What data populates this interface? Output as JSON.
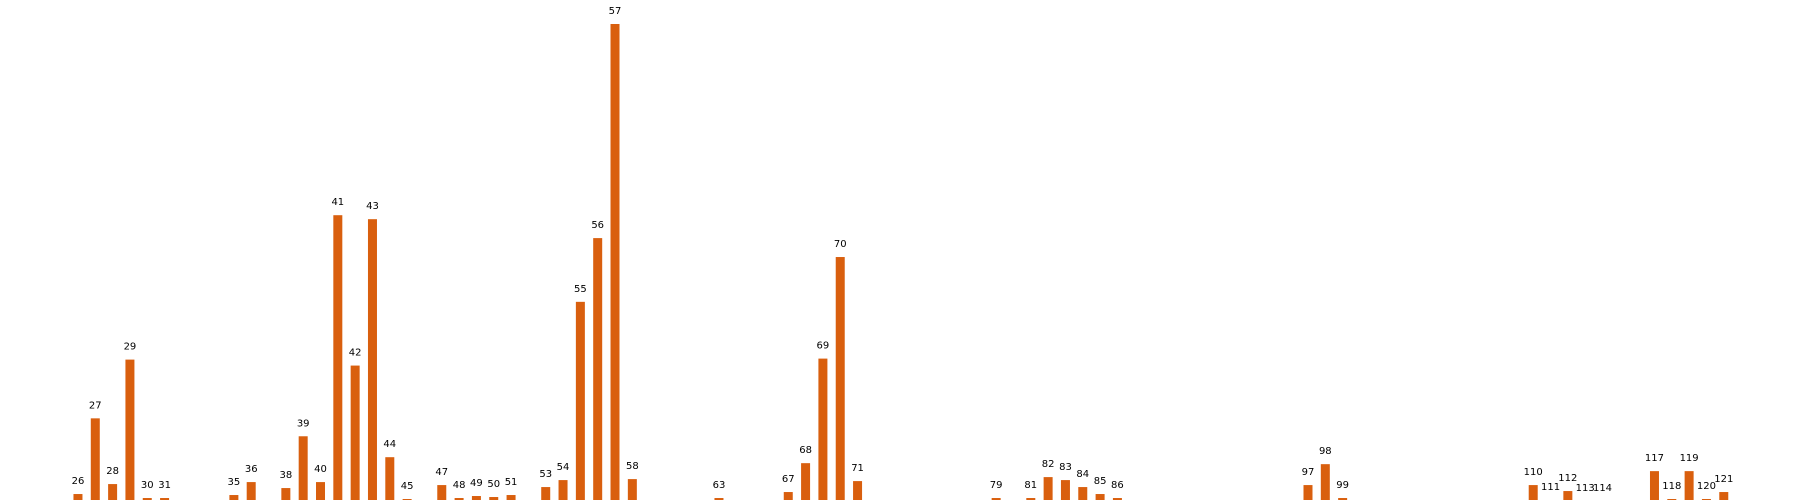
{
  "chart_data": {
    "type": "bar",
    "bar_color": "#d95f0e",
    "categories": [
      "26",
      "27",
      "28",
      "29",
      "30",
      "31",
      "35",
      "36",
      "38",
      "39",
      "40",
      "41",
      "42",
      "43",
      "44",
      "45",
      "47",
      "48",
      "49",
      "50",
      "51",
      "53",
      "54",
      "55",
      "56",
      "57",
      "58",
      "63",
      "67",
      "68",
      "69",
      "70",
      "71",
      "79",
      "81",
      "82",
      "83",
      "84",
      "85",
      "86",
      "97",
      "98",
      "99",
      "110",
      "111",
      "112",
      "113",
      "114",
      "117",
      "118",
      "119",
      "120",
      "121"
    ],
    "values": [
      8,
      84,
      18,
      143,
      4,
      4,
      7,
      20,
      14,
      66,
      20,
      288,
      137,
      284,
      45,
      3,
      17,
      4,
      6,
      5,
      7,
      15,
      22,
      201,
      265,
      480,
      23,
      4,
      10,
      39,
      144,
      246,
      21,
      4,
      4,
      25,
      22,
      15,
      8,
      4,
      17,
      38,
      4,
      17,
      2,
      11,
      1,
      1,
      31,
      3,
      31,
      3,
      10
    ],
    "x_positions": [
      26,
      27,
      28,
      29,
      30,
      31,
      35,
      36,
      38,
      39,
      40,
      41,
      42,
      43,
      44,
      45,
      47,
      48,
      49,
      50,
      51,
      53,
      54,
      55,
      56,
      57,
      58,
      63,
      67,
      68,
      69,
      70,
      71,
      79,
      81,
      82,
      83,
      84,
      85,
      86,
      97,
      98,
      99,
      110,
      111,
      112,
      113,
      114,
      117,
      118,
      119,
      120,
      121
    ],
    "xlim": [
      21.5,
      125.4
    ],
    "ylim": [
      0,
      480
    ],
    "title": "",
    "xlabel": "",
    "ylabel": "",
    "grid": false,
    "axes_visible": false
  }
}
